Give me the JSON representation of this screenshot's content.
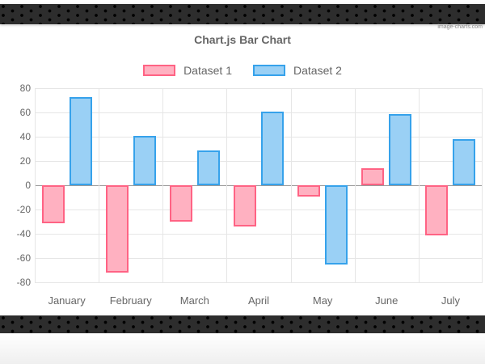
{
  "watermark": "image-charts.com",
  "chart_data": {
    "type": "bar",
    "title": "Chart.js Bar Chart",
    "categories": [
      "January",
      "February",
      "March",
      "April",
      "May",
      "June",
      "July"
    ],
    "series": [
      {
        "name": "Dataset 1",
        "values": [
          -31,
          -72,
          -30,
          -34,
          -9,
          14,
          -41
        ],
        "fill": "#ffb1c1",
        "border": "#ff6384"
      },
      {
        "name": "Dataset 2",
        "values": [
          73,
          41,
          29,
          61,
          -65,
          59,
          38
        ],
        "fill": "#9ad0f5",
        "border": "#36a2eb"
      }
    ],
    "ylim": [
      -80,
      80
    ],
    "yticks": [
      80,
      60,
      40,
      20,
      0,
      -20,
      -40,
      -60,
      -80
    ],
    "grid": true,
    "legend_position": "top",
    "colors": {
      "title_text": "#666666",
      "axis_text": "#666666",
      "gridline": "#e6e6e6",
      "zero_line": "#9b9b9b",
      "band_background": "#2d2d2d"
    }
  }
}
